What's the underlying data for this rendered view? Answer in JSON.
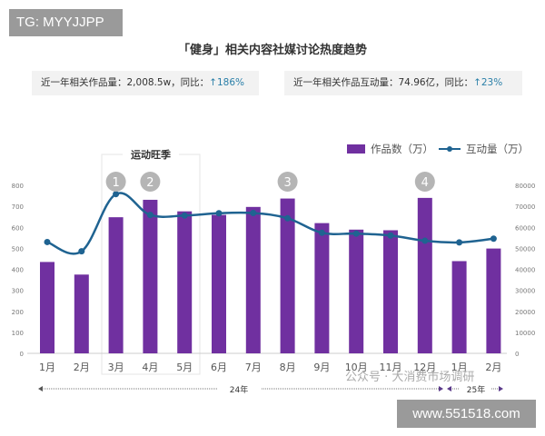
{
  "watermark_top": "TG: MYYJJPP",
  "watermark_bottom": "www.551518.com",
  "watermark_wechat": "公众号 · 大消费市场调研",
  "stats": [
    {
      "label": "近一年相关作品量：2,008.5w，同比：",
      "change": "↑186%"
    },
    {
      "label": "近一年相关作品互动量：74.96亿，同比：",
      "change": "↑23%"
    }
  ],
  "chart_data": {
    "type": "bar+line",
    "title": "「健身」相关内容社媒讨论热度趋势",
    "categories": [
      "1月",
      "2月",
      "3月",
      "4月",
      "5月",
      "6月",
      "7月",
      "8月",
      "9月",
      "10月",
      "11月",
      "12月",
      "1月",
      "2月"
    ],
    "series": [
      {
        "name": "作品数（万）",
        "type": "bar",
        "axis": "left",
        "color": "#7030a0",
        "values": [
          435,
          375,
          648,
          731,
          676,
          659,
          697,
          737,
          620,
          589,
          586,
          740,
          439,
          499
        ]
      },
      {
        "name": "互动量（万）",
        "type": "line",
        "axis": "right",
        "color": "#1f6391",
        "values": [
          53000,
          48600,
          75800,
          65900,
          65600,
          66700,
          66800,
          64300,
          57400,
          57000,
          56100,
          53600,
          52800,
          54600
        ]
      }
    ],
    "ylim_left": [
      0,
      800
    ],
    "yticks_left": [
      "0",
      "100",
      "200",
      "300",
      "400",
      "500",
      "600",
      "700",
      "800"
    ],
    "ylim_right": [
      0,
      80000
    ],
    "yticks_right": [
      "0",
      "10000",
      "20000",
      "30000",
      "40000",
      "50000",
      "60000",
      "70000",
      "80000"
    ],
    "annotation_box": "运动旺季",
    "markers": [
      {
        "label": "1",
        "index": 2
      },
      {
        "label": "2",
        "index": 3
      },
      {
        "label": "3",
        "index": 7
      },
      {
        "label": "4",
        "index": 11
      }
    ],
    "year_labels": [
      "24年",
      "25年"
    ],
    "legend": "top-right",
    "grid": false
  }
}
